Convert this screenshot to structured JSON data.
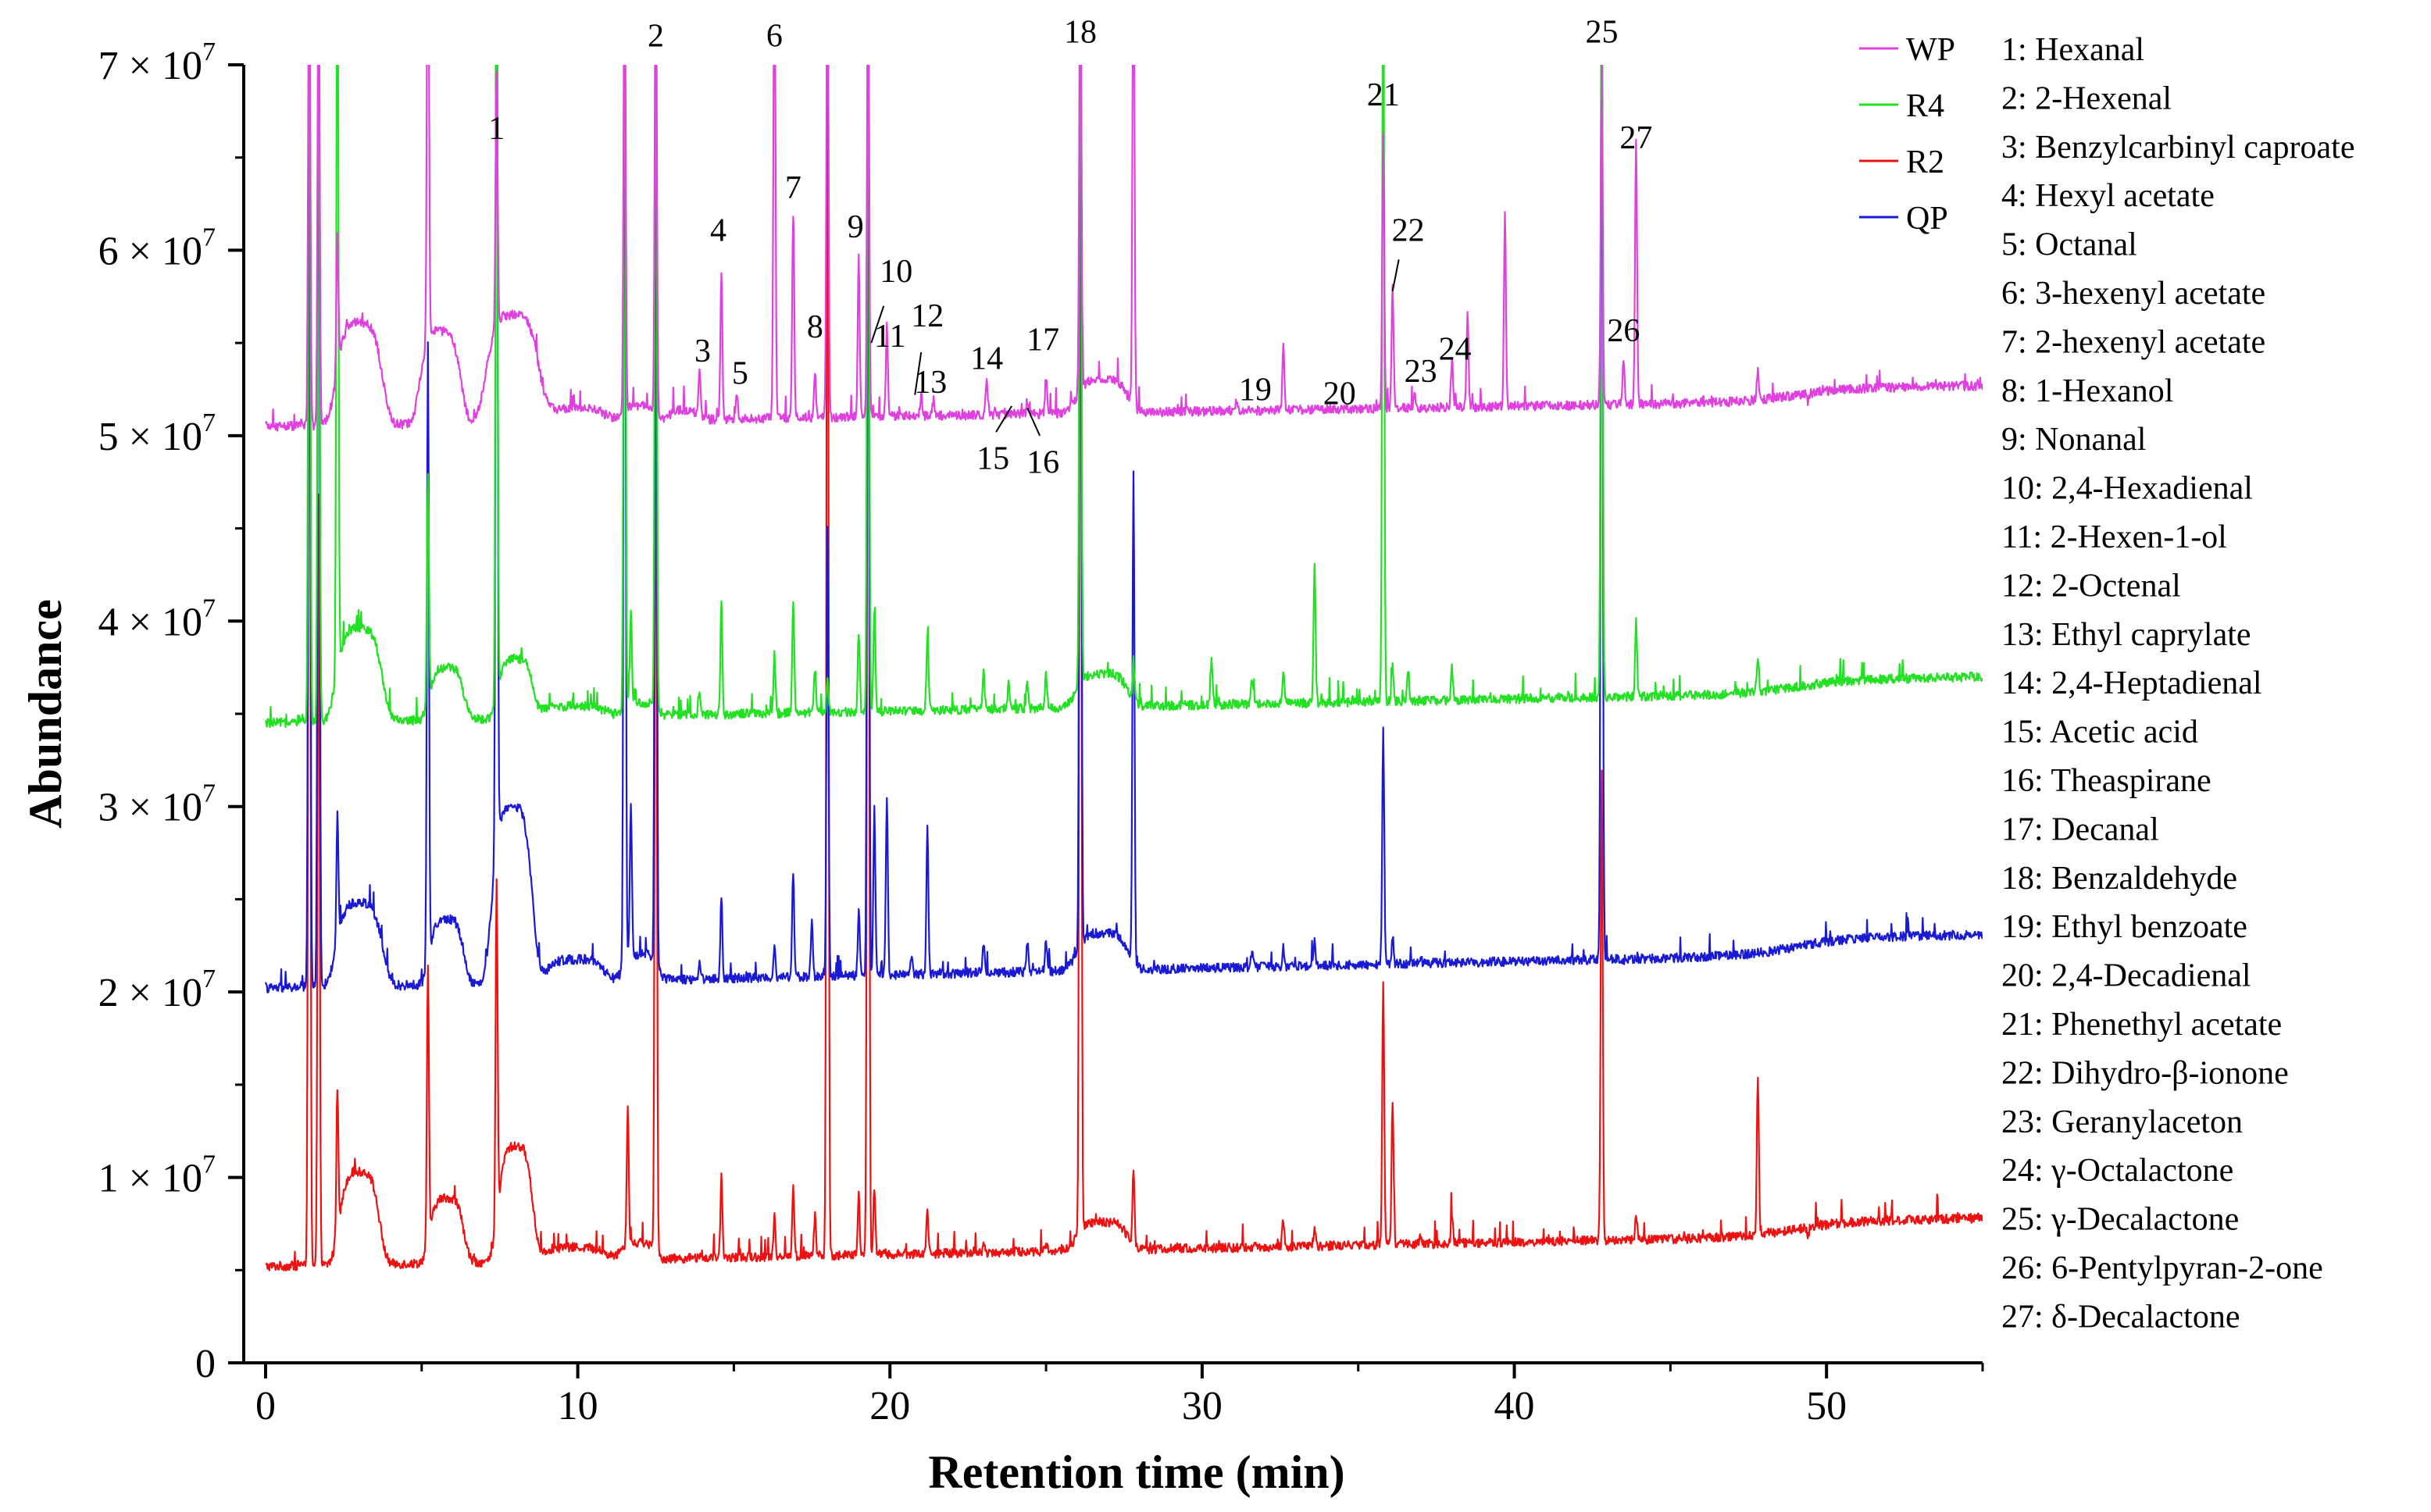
{
  "chart_data": {
    "type": "line",
    "xlabel": "Retention time (min)",
    "ylabel": "Abundance",
    "xlim": [
      -0.7,
      55
    ],
    "ylim": [
      0,
      70000000
    ],
    "x_ticks": [
      0,
      10,
      20,
      30,
      40,
      50
    ],
    "x_tick_labels": [
      "0",
      "10",
      "20",
      "30",
      "40",
      "50"
    ],
    "y_ticks": [
      0,
      10000000,
      20000000,
      30000000,
      40000000,
      50000000,
      60000000,
      70000000
    ],
    "y_tick_labels": [
      {
        "mantissa": "0",
        "exp": ""
      },
      {
        "mantissa": "1 × 10",
        "exp": "7"
      },
      {
        "mantissa": "2 × 10",
        "exp": "7"
      },
      {
        "mantissa": "3 × 10",
        "exp": "7"
      },
      {
        "mantissa": "4 × 10",
        "exp": "7"
      },
      {
        "mantissa": "5 × 10",
        "exp": "7"
      },
      {
        "mantissa": "6 × 10",
        "exp": "7"
      },
      {
        "mantissa": "7 × 10",
        "exp": "7"
      }
    ],
    "legend_position": "top-right, outside plot",
    "series": [
      {
        "name": "WP",
        "color": "#e040e0",
        "baseline_start": 50500000,
        "baseline_end": 52000000,
        "baseline_bump_at": 49,
        "baseline_bump": 700000,
        "peaks": [
          [
            1.4,
            80000000
          ],
          [
            1.7,
            78000000
          ],
          [
            2.3,
            58000000
          ],
          [
            5.2,
            78000000
          ],
          [
            7.4,
            64500000
          ],
          [
            11.5,
            78000000
          ],
          [
            12.5,
            78000000
          ],
          [
            14.6,
            59000000
          ],
          [
            13.9,
            53500000
          ],
          [
            15.1,
            52300000
          ],
          [
            16.3,
            78000000
          ],
          [
            16.9,
            62000000
          ],
          [
            17.6,
            53500000
          ],
          [
            18.0,
            78000000
          ],
          [
            19.0,
            59500000
          ],
          [
            19.3,
            78000000
          ],
          [
            19.9,
            56000000
          ],
          [
            21.0,
            52300000
          ],
          [
            21.4,
            52000000
          ],
          [
            23.1,
            53000000
          ],
          [
            24.4,
            51500000
          ],
          [
            25.0,
            53200000
          ],
          [
            26.1,
            78000000
          ],
          [
            27.8,
            78000000
          ],
          [
            31.6,
            51600000
          ],
          [
            32.6,
            54800000
          ],
          [
            33.6,
            51500000
          ],
          [
            35.8,
            66500000
          ],
          [
            36.1,
            58000000
          ],
          [
            36.8,
            52300000
          ],
          [
            38.0,
            54000000
          ],
          [
            38.5,
            56500000
          ],
          [
            39.7,
            62300000
          ],
          [
            42.8,
            70000000
          ],
          [
            43.5,
            54200000
          ],
          [
            43.9,
            66000000
          ],
          [
            47.8,
            53500000
          ],
          [
            49.4,
            51800000
          ]
        ],
        "humps": [
          [
            3.0,
            5500000,
            0.8
          ],
          [
            5.6,
            5000000,
            0.7
          ],
          [
            7.9,
            5800000,
            0.9
          ],
          [
            9.8,
            700000,
            1.2
          ],
          [
            12.0,
            800000,
            0.6
          ],
          [
            13.4,
            500000,
            0.5
          ],
          [
            26.8,
            1800000,
            0.9
          ]
        ]
      },
      {
        "name": "R4",
        "color": "#22e022",
        "baseline_start": 34500000,
        "baseline_end": 36300000,
        "baseline_bump_at": 49,
        "baseline_bump": 700000,
        "peaks": [
          [
            1.4,
            80000000
          ],
          [
            1.7,
            78000000
          ],
          [
            2.3,
            78000000
          ],
          [
            5.2,
            47000000
          ],
          [
            7.4,
            78000000
          ],
          [
            11.5,
            78000000
          ],
          [
            11.7,
            40000000
          ],
          [
            12.5,
            78000000
          ],
          [
            14.6,
            41000000
          ],
          [
            13.9,
            36300000
          ],
          [
            16.3,
            38200000
          ],
          [
            16.9,
            41200000
          ],
          [
            17.6,
            37500000
          ],
          [
            18.0,
            36800000
          ],
          [
            19.0,
            39500000
          ],
          [
            19.3,
            78000000
          ],
          [
            19.5,
            40500000
          ],
          [
            21.2,
            39200000
          ],
          [
            23.0,
            37200000
          ],
          [
            23.8,
            36600000
          ],
          [
            24.4,
            36800000
          ],
          [
            25.0,
            37100000
          ],
          [
            26.1,
            78000000
          ],
          [
            27.8,
            37500000
          ],
          [
            30.3,
            38000000
          ],
          [
            31.6,
            36800000
          ],
          [
            32.6,
            37300000
          ],
          [
            33.6,
            43200000
          ],
          [
            35.8,
            78000000
          ],
          [
            36.1,
            37600000
          ],
          [
            36.6,
            37300000
          ],
          [
            38.0,
            37500000
          ],
          [
            42.8,
            78000000
          ],
          [
            43.9,
            40000000
          ],
          [
            47.8,
            38200000
          ],
          [
            49.4,
            36400000
          ]
        ],
        "humps": [
          [
            3.0,
            5000000,
            0.8
          ],
          [
            5.8,
            2800000,
            0.6
          ],
          [
            8.0,
            3200000,
            0.6
          ],
          [
            9.8,
            600000,
            1.2
          ],
          [
            12.0,
            700000,
            0.6
          ],
          [
            26.8,
            1800000,
            0.9
          ]
        ]
      },
      {
        "name": "R2",
        "color": "#ee1111",
        "baseline_start": 5200000,
        "baseline_end": 7000000,
        "baseline_bump_at": 49,
        "baseline_bump": 800000,
        "peaks": [
          [
            1.4,
            78000000
          ],
          [
            1.7,
            47000000
          ],
          [
            2.3,
            13000000
          ],
          [
            5.2,
            20000000
          ],
          [
            7.4,
            23800000
          ],
          [
            11.6,
            13000000
          ],
          [
            12.5,
            58000000
          ],
          [
            14.6,
            10000000
          ],
          [
            16.3,
            8000000
          ],
          [
            16.9,
            9500000
          ],
          [
            17.6,
            8000000
          ],
          [
            18.0,
            78000000
          ],
          [
            19.0,
            9000000
          ],
          [
            19.3,
            78000000
          ],
          [
            19.5,
            9500000
          ],
          [
            21.2,
            8200000
          ],
          [
            23.0,
            6300000
          ],
          [
            25.0,
            6500000
          ],
          [
            26.1,
            78000000
          ],
          [
            27.8,
            10200000
          ],
          [
            32.6,
            7800000
          ],
          [
            33.6,
            7400000
          ],
          [
            35.8,
            20500000
          ],
          [
            36.1,
            14200000
          ],
          [
            37.0,
            6900000
          ],
          [
            38.0,
            8100000
          ],
          [
            42.8,
            31800000
          ],
          [
            43.9,
            7800000
          ],
          [
            47.8,
            15500000
          ],
          [
            49.4,
            6800000
          ]
        ],
        "humps": [
          [
            3.0,
            5000000,
            0.7
          ],
          [
            5.8,
            3500000,
            0.6
          ],
          [
            8.0,
            6200000,
            0.6
          ],
          [
            9.8,
            700000,
            1.2
          ],
          [
            11.9,
            900000,
            0.6
          ],
          [
            26.8,
            1500000,
            0.9
          ]
        ]
      },
      {
        "name": "QP",
        "color": "#1a1ad4",
        "baseline_start": 20200000,
        "baseline_end": 22200000,
        "baseline_bump_at": 49,
        "baseline_bump": 900000,
        "peaks": [
          [
            1.4,
            78000000
          ],
          [
            1.7,
            78000000
          ],
          [
            2.3,
            27000000
          ],
          [
            5.2,
            54000000
          ],
          [
            7.4,
            76000000
          ],
          [
            11.5,
            78000000
          ],
          [
            11.7,
            29000000
          ],
          [
            12.5,
            78000000
          ],
          [
            14.6,
            25200000
          ],
          [
            13.9,
            21600000
          ],
          [
            16.3,
            22500000
          ],
          [
            16.9,
            26600000
          ],
          [
            17.5,
            23800000
          ],
          [
            18.0,
            45000000
          ],
          [
            19.0,
            24300000
          ],
          [
            19.3,
            78000000
          ],
          [
            19.5,
            29800000
          ],
          [
            19.9,
            30500000
          ],
          [
            20.7,
            22000000
          ],
          [
            21.2,
            28800000
          ],
          [
            23.0,
            22700000
          ],
          [
            24.4,
            22800000
          ],
          [
            25.0,
            22800000
          ],
          [
            26.1,
            78000000
          ],
          [
            27.8,
            47500000
          ],
          [
            31.6,
            22200000
          ],
          [
            32.6,
            22400000
          ],
          [
            33.6,
            22800000
          ],
          [
            35.8,
            34200000
          ],
          [
            36.1,
            23000000
          ],
          [
            37.0,
            21800000
          ],
          [
            42.8,
            78000000
          ],
          [
            43.5,
            21700000
          ],
          [
            49.4,
            22500000
          ]
        ],
        "humps": [
          [
            3.0,
            4500000,
            0.8
          ],
          [
            5.8,
            3500000,
            0.6
          ],
          [
            7.9,
            9500000,
            0.7
          ],
          [
            9.9,
            1200000,
            1.0
          ],
          [
            12.0,
            1400000,
            0.6
          ],
          [
            26.8,
            2000000,
            0.9
          ]
        ]
      }
    ],
    "peak_labels": [
      {
        "text": "1",
        "x": 7.4,
        "y": 66000000
      },
      {
        "text": "2",
        "x": 12.5,
        "y": 71000000
      },
      {
        "text": "3",
        "x": 14.0,
        "y": 54000000
      },
      {
        "text": "4",
        "x": 14.5,
        "y": 60500000
      },
      {
        "text": "5",
        "x": 15.2,
        "y": 52800000
      },
      {
        "text": "6",
        "x": 16.3,
        "y": 71000000
      },
      {
        "text": "7",
        "x": 16.9,
        "y": 62800000
      },
      {
        "text": "8",
        "x": 17.6,
        "y": 55300000
      },
      {
        "text": "9",
        "x": 18.9,
        "y": 60700000
      },
      {
        "text": "10",
        "x": 20.2,
        "y": 58300000
      },
      {
        "text": "11",
        "x": 20.0,
        "y": 54800000
      },
      {
        "text": "12",
        "x": 21.2,
        "y": 55900000
      },
      {
        "text": "13",
        "x": 21.3,
        "y": 52300000
      },
      {
        "text": "14",
        "x": 23.1,
        "y": 53600000
      },
      {
        "text": "15",
        "x": 23.3,
        "y": 48200000
      },
      {
        "text": "16",
        "x": 24.9,
        "y": 48000000
      },
      {
        "text": "17",
        "x": 24.9,
        "y": 54600000
      },
      {
        "text": "18",
        "x": 26.1,
        "y": 71200000
      },
      {
        "text": "19",
        "x": 31.7,
        "y": 51900000
      },
      {
        "text": "20",
        "x": 34.4,
        "y": 51700000
      },
      {
        "text": "21",
        "x": 35.8,
        "y": 67800000
      },
      {
        "text": "22",
        "x": 36.6,
        "y": 60500000
      },
      {
        "text": "23",
        "x": 37.0,
        "y": 52900000
      },
      {
        "text": "24",
        "x": 38.1,
        "y": 54100000
      },
      {
        "text": "25",
        "x": 42.8,
        "y": 71200000
      },
      {
        "text": "26",
        "x": 43.5,
        "y": 55100000
      },
      {
        "text": "27",
        "x": 43.9,
        "y": 65500000
      }
    ],
    "label_leaders": [
      [
        19.8,
        57000000,
        19.4,
        55000000
      ],
      [
        21.0,
        54500000,
        20.8,
        52200000
      ],
      [
        23.4,
        50200000,
        23.9,
        51600000
      ],
      [
        24.8,
        50000000,
        24.4,
        51500000
      ],
      [
        36.3,
        59500000,
        36.1,
        57800000
      ]
    ],
    "compounds": [
      "1: Hexanal",
      "2: 2-Hexenal",
      "3: Benzylcarbinyl caproate",
      "4: Hexyl acetate",
      "5: Octanal",
      "6: 3-hexenyl acetate",
      "7: 2-hexenyl acetate",
      "8: 1-Hexanol",
      "9: Nonanal",
      "10: 2,4-Hexadienal",
      "11: 2-Hexen-1-ol",
      "12: 2-Octenal",
      "13: Ethyl caprylate",
      "14: 2,4-Heptadienal",
      "15: Acetic acid",
      "16: Theaspirane",
      "17: Decanal",
      "18: Benzaldehyde",
      "19: Ethyl benzoate",
      "20: 2,4-Decadienal",
      "21: Phenethyl acetate",
      "22: Dihydro-β-ionone",
      "23: Geranylaceton",
      "24: γ-Octalactone",
      "25: γ-Decalactone",
      "26: 6-Pentylpyran-2-one",
      "27: δ-Decalactone"
    ]
  }
}
